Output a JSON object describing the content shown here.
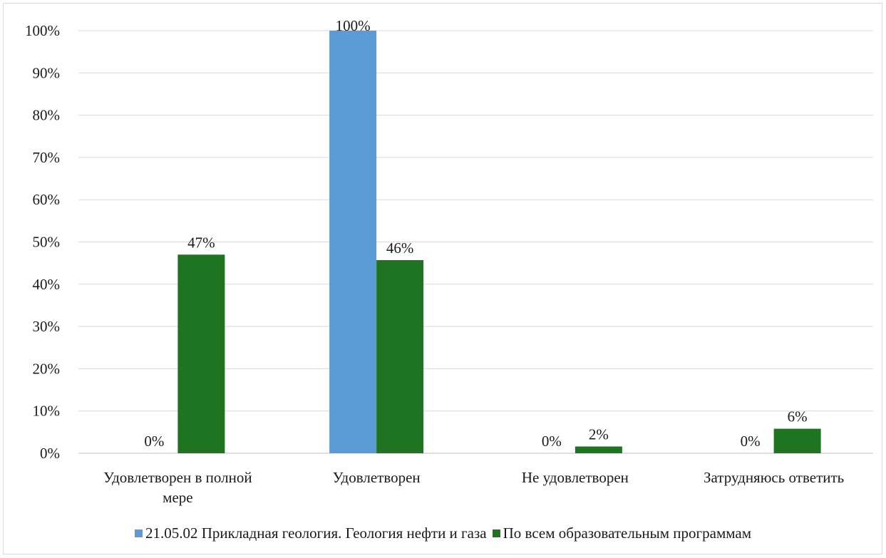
{
  "chart_data": {
    "type": "bar",
    "categories": [
      "Удовлетворен в полной мере",
      "Удовлетворен",
      "Не удовлетворен",
      "Затрудняюсь ответить"
    ],
    "category_lines": [
      [
        "Удовлетворен в полной",
        "мере"
      ],
      [
        "Удовлетворен"
      ],
      [
        "Не удовлетворен"
      ],
      [
        "Затрудняюсь ответить"
      ]
    ],
    "series": [
      {
        "name": "21.05.02 Прикладная геология. Геология нефти и газа",
        "color": "#5b9bd5",
        "values": [
          0,
          100,
          0,
          0
        ],
        "labels": [
          "0%",
          "100%",
          "0%",
          "0%"
        ]
      },
      {
        "name": "По всем образовательным программам",
        "color": "#1e7421",
        "values": [
          47,
          45.7,
          1.6,
          5.8
        ],
        "labels": [
          "47%",
          "46%",
          "2%",
          "6%"
        ]
      }
    ],
    "ylim": [
      0,
      100
    ],
    "yticks": [
      0,
      10,
      20,
      30,
      40,
      50,
      60,
      70,
      80,
      90,
      100
    ],
    "ytick_labels": [
      "0%",
      "10%",
      "20%",
      "30%",
      "40%",
      "50%",
      "60%",
      "70%",
      "80%",
      "90%",
      "100%"
    ],
    "grid": true,
    "legend_position": "bottom"
  }
}
